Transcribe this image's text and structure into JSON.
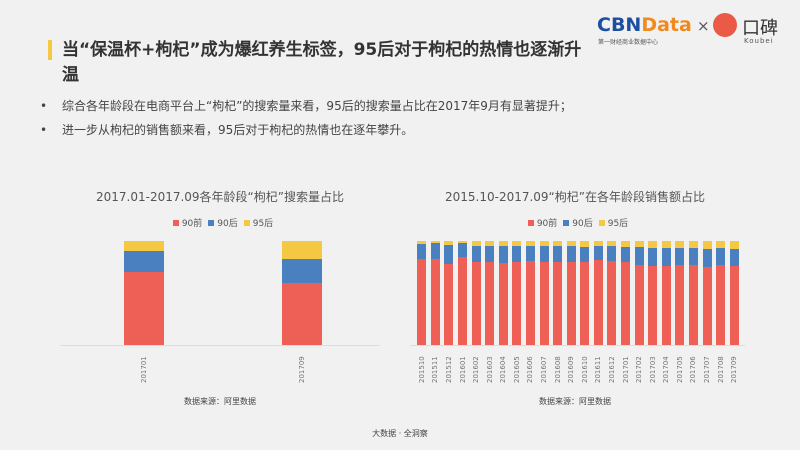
{
  "header": {
    "title": "当“保温杯+枸杞”成为爆红养生标签，95后对于枸杞的热情也逐渐升温",
    "bullets": [
      "综合各年龄段在电商平台上“枸杞”的搜索量来看，95后的搜索量占比在2017年9月有显著提升；",
      "进一步从枸杞的销售额来看，95后对于枸杞的热情也在逐年攀升。"
    ],
    "logo": {
      "cbn": "CBN",
      "data": "Data",
      "sub": "第一财经商业数据中心",
      "times": "×",
      "koubei": "口碑",
      "koubei_en": "Koubei"
    }
  },
  "colors": {
    "90前": "#ee5f56",
    "90后": "#4a7fc0",
    "95后": "#f4c842"
  },
  "chart_data": [
    {
      "type": "bar",
      "stacked": true,
      "title": "2017.01-2017.09各年龄段“枸杞”搜索量占比",
      "legend": "top",
      "source": "数据来源：阿里数据",
      "categories": [
        "201701",
        "201709"
      ],
      "series": [
        {
          "name": "90前",
          "values": [
            70,
            60
          ]
        },
        {
          "name": "90后",
          "values": [
            20,
            23
          ]
        },
        {
          "name": "95后",
          "values": [
            10,
            17
          ]
        }
      ],
      "ylim": [
        0,
        100
      ]
    },
    {
      "type": "bar",
      "stacked": true,
      "title": "2015.10-2017.09“枸杞”在各年龄段销售额占比",
      "legend": "top",
      "source": "数据来源：阿里数据",
      "categories": [
        "201510",
        "201511",
        "201512",
        "201601",
        "201602",
        "201603",
        "201604",
        "201605",
        "201606",
        "201607",
        "201608",
        "201609",
        "201610",
        "201611",
        "201612",
        "201701",
        "201702",
        "201703",
        "201704",
        "201705",
        "201706",
        "201707",
        "201708",
        "201709"
      ],
      "series": [
        {
          "name": "90前",
          "values": [
            83,
            83,
            78,
            85,
            80,
            80,
            79,
            80,
            81,
            80,
            80,
            80,
            80,
            82,
            81,
            80,
            77,
            76,
            76,
            77,
            77,
            75,
            77,
            76
          ]
        },
        {
          "name": "90后",
          "values": [
            14,
            15,
            18,
            13,
            15,
            15,
            16,
            15,
            14,
            15,
            15,
            15,
            14,
            13,
            14,
            14,
            17,
            17,
            17,
            16,
            16,
            17,
            16,
            16
          ]
        },
        {
          "name": "95后",
          "values": [
            3,
            2,
            4,
            2,
            5,
            5,
            5,
            5,
            5,
            5,
            5,
            5,
            6,
            5,
            5,
            6,
            6,
            7,
            7,
            7,
            7,
            8,
            7,
            8
          ]
        }
      ],
      "ylim": [
        0,
        100
      ]
    }
  ],
  "footer": "大数据 · 全洞察"
}
